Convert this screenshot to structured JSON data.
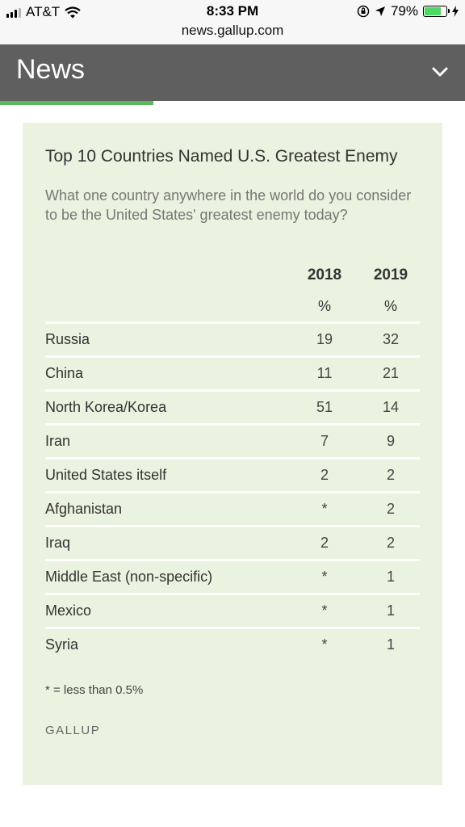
{
  "status_bar": {
    "carrier": "AT&T",
    "time": "8:33 PM",
    "battery_percent": "79%",
    "battery_level": 0.79,
    "icons": [
      "signal-icon",
      "wifi-icon",
      "screen-lock-icon",
      "location-icon",
      "battery-icon",
      "charging-icon"
    ]
  },
  "browser": {
    "url": "news.gallup.com"
  },
  "header": {
    "title": "News",
    "menu_icon": "chevron-down-icon",
    "read_progress": 0.33,
    "accent_color": "#5cb85c"
  },
  "card": {
    "title": "Top 10 Countries Named U.S. Greatest Enemy",
    "question": "What one country anywhere in the world do you consider to be the United States' greatest enemy today?",
    "columns": [
      {
        "year": "2018",
        "unit": "%"
      },
      {
        "year": "2019",
        "unit": "%"
      }
    ],
    "rows": [
      {
        "country": "Russia",
        "v2018": "19",
        "v2019": "32"
      },
      {
        "country": "China",
        "v2018": "11",
        "v2019": "21"
      },
      {
        "country": "North Korea/Korea",
        "v2018": "51",
        "v2019": "14"
      },
      {
        "country": "Iran",
        "v2018": "7",
        "v2019": "9"
      },
      {
        "country": "United States itself",
        "v2018": "2",
        "v2019": "2"
      },
      {
        "country": "Afghanistan",
        "v2018": "*",
        "v2019": "2"
      },
      {
        "country": "Iraq",
        "v2018": "2",
        "v2019": "2"
      },
      {
        "country": "Middle East (non-specific)",
        "v2018": "*",
        "v2019": "1"
      },
      {
        "country": "Mexico",
        "v2018": "*",
        "v2019": "1"
      },
      {
        "country": "Syria",
        "v2018": "*",
        "v2019": "1"
      }
    ],
    "footnote": "* = less than 0.5%",
    "source": "GALLUP",
    "background_color": "#e9f3df"
  }
}
